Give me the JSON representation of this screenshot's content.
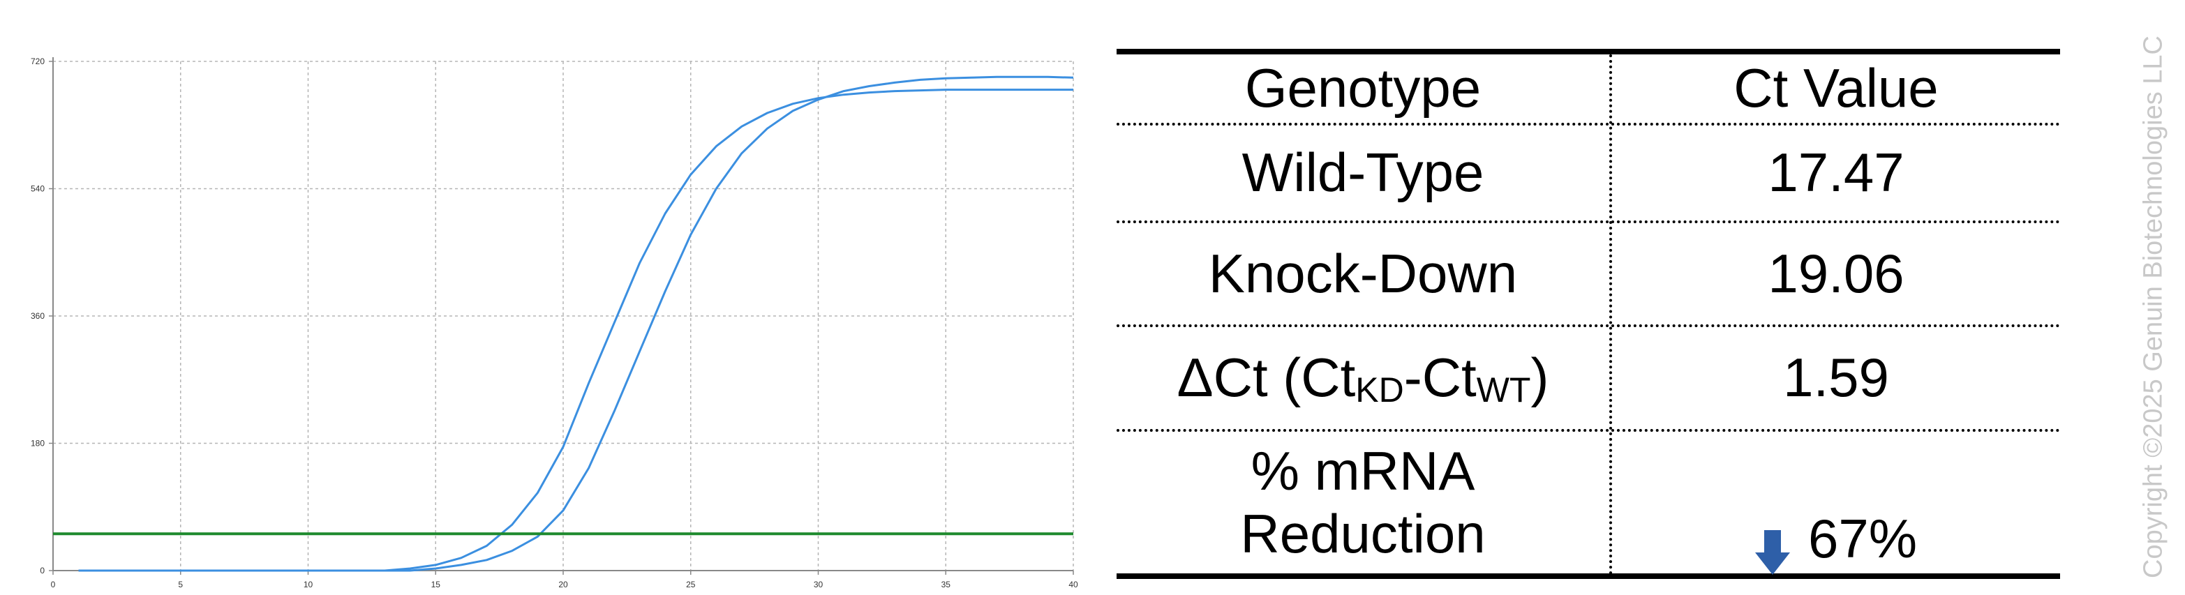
{
  "chart_data": {
    "type": "line",
    "title": "",
    "xlabel": "",
    "ylabel": "",
    "xlim": [
      0,
      40
    ],
    "ylim": [
      0,
      720
    ],
    "x_ticks": [
      0,
      5,
      10,
      15,
      20,
      25,
      30,
      35,
      40
    ],
    "y_ticks": [
      0,
      180,
      360,
      540,
      720
    ],
    "grid": true,
    "series": [
      {
        "color": "#3b8fe0",
        "x": [
          1,
          13,
          14,
          15,
          16,
          17,
          18,
          19,
          20,
          21,
          22,
          23,
          24,
          25,
          26,
          27,
          28,
          29,
          30,
          31,
          32,
          33,
          34,
          35,
          36,
          37,
          38,
          39,
          40
        ],
        "y": [
          0,
          0,
          3,
          8,
          18,
          35,
          65,
          110,
          175,
          265,
          350,
          435,
          505,
          560,
          600,
          628,
          647,
          660,
          668,
          673,
          676,
          678,
          679,
          680,
          680,
          680,
          680,
          680,
          680
        ]
      },
      {
        "color": "#3b8fe0",
        "x": [
          1,
          14,
          15,
          16,
          17,
          18,
          19,
          20,
          21,
          22,
          23,
          24,
          25,
          26,
          27,
          28,
          29,
          30,
          31,
          32,
          33,
          34,
          35,
          36,
          37,
          38,
          39,
          40
        ],
        "y": [
          0,
          0,
          3,
          8,
          15,
          28,
          48,
          85,
          145,
          225,
          310,
          395,
          475,
          540,
          590,
          625,
          650,
          666,
          678,
          685,
          690,
          694,
          696,
          697,
          698,
          698,
          698,
          697
        ]
      }
    ],
    "threshold": {
      "y": 52,
      "color": "#1e8a2e"
    }
  },
  "table": {
    "header": {
      "genotype": "Genotype",
      "ct_value": "Ct Value"
    },
    "rows": [
      {
        "label": "Wild-Type",
        "value": "17.47"
      },
      {
        "label": "Knock-Down",
        "value": "19.06"
      }
    ],
    "delta_row": {
      "prefix": "ΔCt (Ct",
      "sub_kd": "KD",
      "mid": "-Ct",
      "sub_wt": "WT",
      "suffix": ")",
      "value": "1.59"
    },
    "reduction_row": {
      "label_line1": "% mRNA",
      "label_line2": "Reduction",
      "value": "67%",
      "icon": "down-arrow-icon",
      "icon_color": "#2e5fa8"
    }
  },
  "copyright": "Copyright ©2025 Genuin Biotechnologies LLC"
}
